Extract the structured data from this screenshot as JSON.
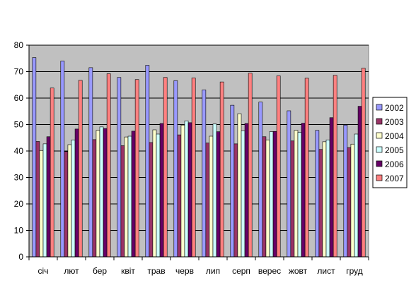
{
  "chart_data": {
    "type": "bar",
    "categories": [
      "січ",
      "лют",
      "бер",
      "квіт",
      "трав",
      "черв",
      "лип",
      "серп",
      "верес",
      "жовт",
      "лист",
      "груд"
    ],
    "series": [
      {
        "name": "2002",
        "color": "#9999FF",
        "values": [
          75.3,
          74.0,
          71.5,
          67.8,
          72.4,
          66.6,
          63.1,
          57.3,
          58.5,
          55.2,
          47.8,
          49.8
        ]
      },
      {
        "name": "2003",
        "color": "#993366",
        "values": [
          43.6,
          39.8,
          44.3,
          42.0,
          43.2,
          46.1,
          43.0,
          42.7,
          45.4,
          43.8,
          40.6,
          41.3
        ]
      },
      {
        "name": "2004",
        "color": "#FFFFCC",
        "values": [
          40.2,
          42.4,
          47.8,
          45.3,
          48.0,
          49.8,
          45.6,
          54.1,
          44.2,
          47.8,
          43.5,
          42.6
        ]
      },
      {
        "name": "2005",
        "color": "#CCFFFF",
        "values": [
          42.7,
          44.2,
          49.1,
          45.6,
          46.4,
          51.4,
          50.2,
          47.6,
          47.3,
          47.1,
          44.2,
          46.4
        ]
      },
      {
        "name": "2006",
        "color": "#660066",
        "values": [
          45.4,
          48.3,
          48.5,
          47.5,
          50.4,
          50.7,
          47.3,
          50.4,
          47.4,
          50.5,
          52.6,
          56.9
        ]
      },
      {
        "name": "2007",
        "color": "#FF8080",
        "values": [
          63.8,
          66.7,
          69.2,
          67.0,
          67.8,
          67.6,
          66.1,
          69.4,
          68.4,
          67.5,
          68.6,
          71.3
        ]
      }
    ],
    "ylim": [
      0,
      80
    ],
    "yticks": [
      "0",
      "10",
      "20",
      "30",
      "40",
      "50",
      "60",
      "70",
      "80"
    ],
    "grid": true,
    "legend_position": "right",
    "plot_background": "#C0C0C0"
  }
}
